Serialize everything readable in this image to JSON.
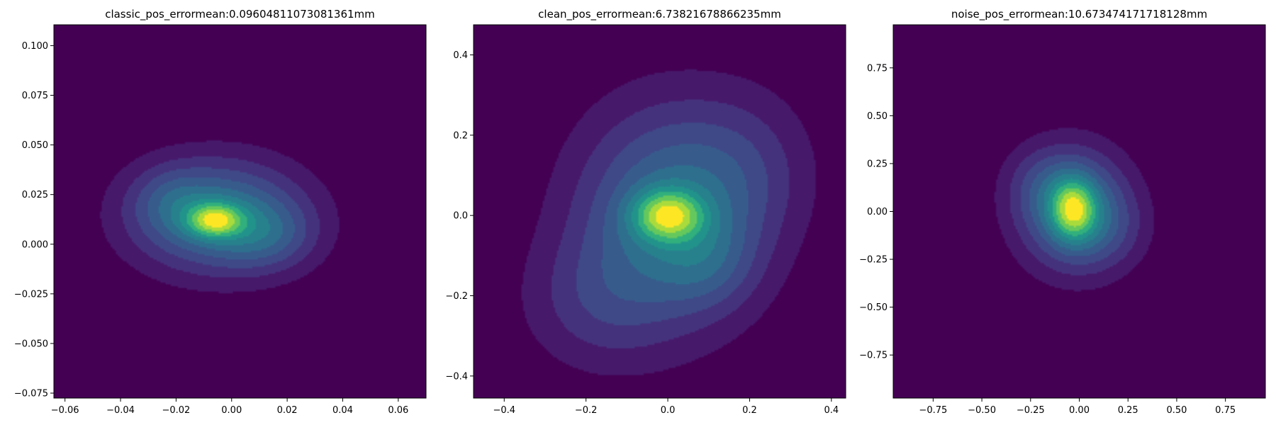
{
  "figure": {
    "background": "#ffffff"
  },
  "chart_data": [
    {
      "type": "heatmap",
      "kind": "2d-kde-filled-contour",
      "colormap": "viridis",
      "title": "classic_pos_errormean:0.09604811073081361mm",
      "xlim": [
        -0.064,
        0.07
      ],
      "ylim": [
        -0.0775,
        0.1105
      ],
      "xticks": [
        -0.06,
        -0.04,
        -0.02,
        0.0,
        0.02,
        0.04,
        0.06
      ],
      "xtick_labels": [
        "−0.06",
        "−0.04",
        "−0.02",
        "0.00",
        "0.02",
        "0.04",
        "0.06"
      ],
      "yticks": [
        -0.075,
        -0.05,
        -0.025,
        0.0,
        0.025,
        0.05,
        0.075,
        0.1
      ],
      "ytick_labels": [
        "−0.075",
        "−0.050",
        "−0.025",
        "0.000",
        "0.025",
        "0.050",
        "0.075",
        "0.100"
      ],
      "peak": [
        -0.005,
        0.013
      ],
      "grid": false,
      "blobs": [
        {
          "cx": -0.005,
          "cy": 0.014,
          "sx": 0.022,
          "sy": 0.02,
          "w": 1.0
        },
        {
          "cx": 0.013,
          "cy": 0.004,
          "sx": 0.012,
          "sy": 0.012,
          "w": 0.35
        },
        {
          "cx": -0.022,
          "cy": 0.022,
          "sx": 0.01,
          "sy": 0.012,
          "w": 0.25
        },
        {
          "cx": -0.006,
          "cy": 0.012,
          "sx": 0.007,
          "sy": 0.006,
          "w": 0.9
        }
      ]
    },
    {
      "type": "heatmap",
      "kind": "2d-kde-filled-contour",
      "colormap": "viridis",
      "title": "clean_pos_errormean:6.73821678866235mm",
      "xlim": [
        -0.475,
        0.435
      ],
      "ylim": [
        -0.455,
        0.475
      ],
      "xticks": [
        -0.4,
        -0.2,
        0.0,
        0.2,
        0.4
      ],
      "xtick_labels": [
        "−0.4",
        "−0.2",
        "0.0",
        "0.2",
        "0.4"
      ],
      "yticks": [
        -0.4,
        -0.2,
        0.0,
        0.2,
        0.4
      ],
      "ytick_labels": [
        "−0.4",
        "−0.2",
        "0.0",
        "0.2",
        "0.4"
      ],
      "peak": [
        0.0,
        0.0
      ],
      "grid": false,
      "blobs": [
        {
          "cx": 0.0,
          "cy": 0.0,
          "sx": 0.16,
          "sy": 0.19,
          "w": 1.0
        },
        {
          "cx": -0.18,
          "cy": -0.22,
          "sx": 0.13,
          "sy": 0.12,
          "w": 0.35
        },
        {
          "cx": 0.2,
          "cy": 0.12,
          "sx": 0.12,
          "sy": 0.14,
          "w": 0.3
        },
        {
          "cx": 0.0,
          "cy": 0.0,
          "sx": 0.06,
          "sy": 0.045,
          "w": 1.1
        },
        {
          "cx": 0.1,
          "cy": -0.12,
          "sx": 0.08,
          "sy": 0.08,
          "w": 0.3
        }
      ]
    },
    {
      "type": "heatmap",
      "kind": "2d-kde-filled-contour",
      "colormap": "viridis",
      "title": "noise_pos_errormean:10.673474171718128mm",
      "xlim": [
        -0.955,
        0.955
      ],
      "ylim": [
        -0.975,
        0.975
      ],
      "xticks": [
        -0.75,
        -0.5,
        -0.25,
        0.0,
        0.25,
        0.5,
        0.75
      ],
      "xtick_labels": [
        "−0.75",
        "−0.50",
        "−0.25",
        "0.00",
        "0.25",
        "0.50",
        "0.75"
      ],
      "yticks": [
        -0.75,
        -0.5,
        -0.25,
        0.0,
        0.25,
        0.5,
        0.75
      ],
      "ytick_labels": [
        "−0.75",
        "−0.50",
        "−0.25",
        "0.00",
        "0.25",
        "0.50",
        "0.75"
      ],
      "peak": [
        -0.03,
        0.01
      ],
      "grid": false,
      "blobs": [
        {
          "cx": -0.03,
          "cy": 0.01,
          "sx": 0.2,
          "sy": 0.22,
          "w": 1.0
        },
        {
          "cx": -0.03,
          "cy": 0.01,
          "sx": 0.08,
          "sy": 0.11,
          "w": 0.9
        },
        {
          "cx": 0.15,
          "cy": -0.1,
          "sx": 0.15,
          "sy": 0.15,
          "w": 0.2
        },
        {
          "cx": -0.2,
          "cy": 0.15,
          "sx": 0.14,
          "sy": 0.14,
          "w": 0.2
        }
      ]
    }
  ]
}
